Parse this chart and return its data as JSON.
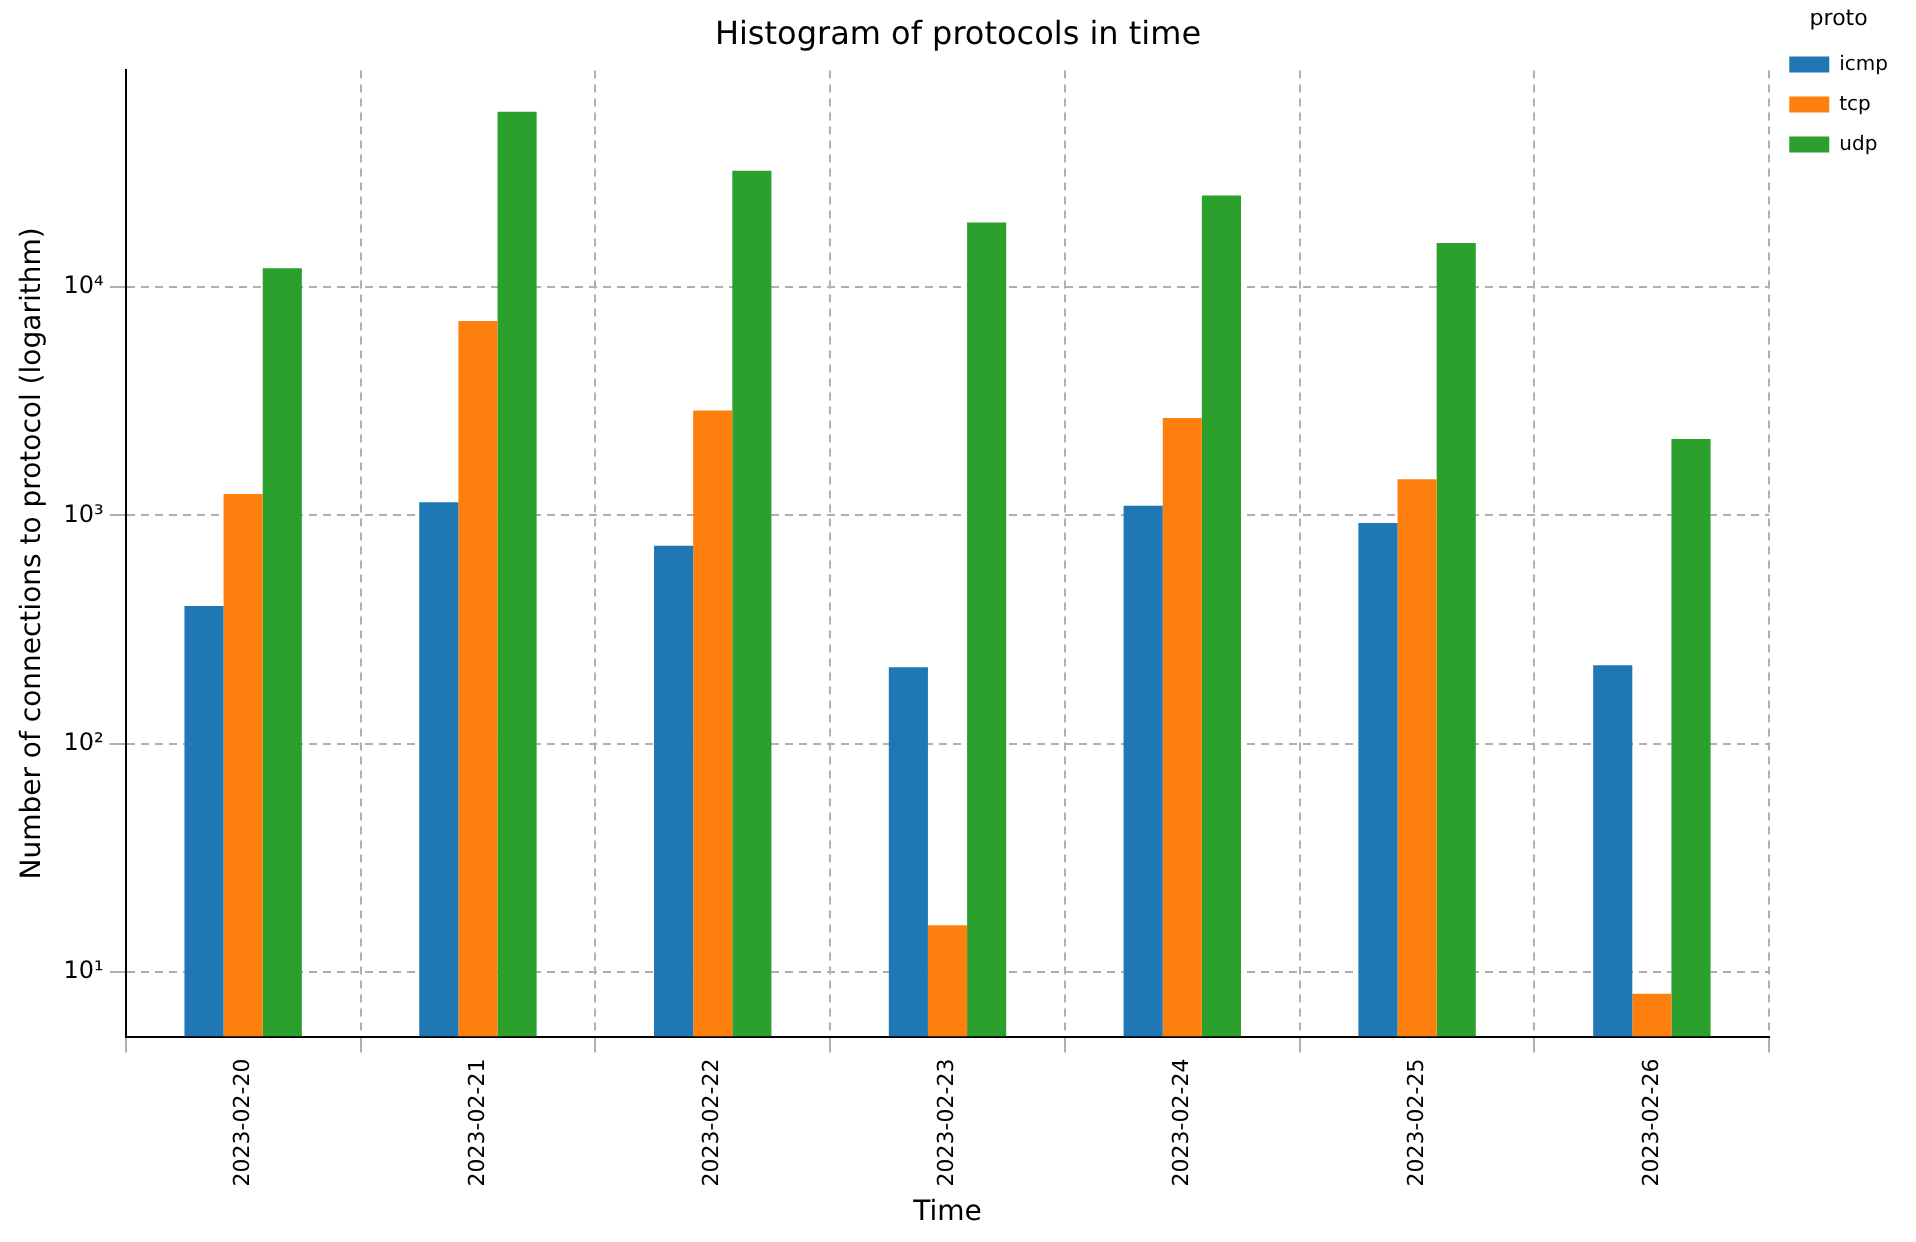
{
  "chart_data": {
    "type": "bar",
    "title": "Histogram of protocols in time",
    "xlabel": "Time",
    "ylabel": "Number of connections to protocol (logarithm)",
    "legend_title": "proto",
    "categories": [
      "2023-02-20",
      "2023-02-21",
      "2023-02-22",
      "2023-02-23",
      "2023-02-24",
      "2023-02-25",
      "2023-02-26"
    ],
    "series": [
      {
        "name": "icmp",
        "color": "#1f77b4",
        "values": [
          400,
          1140,
          735,
          216,
          1100,
          926,
          220
        ]
      },
      {
        "name": "tcp",
        "color": "#ff7f0e",
        "values": [
          1240,
          7100,
          2880,
          16,
          2670,
          1440,
          8
        ]
      },
      {
        "name": "udp",
        "color": "#2ca02c",
        "values": [
          12100,
          58700,
          32300,
          19200,
          25200,
          15600,
          2160
        ]
      }
    ],
    "log": "y",
    "ylim": [
      5.2,
      89000
    ],
    "yticks": [
      {
        "value": 10,
        "label": "10¹"
      },
      {
        "value": 100,
        "label": "10²"
      },
      {
        "value": 1000,
        "label": "10³"
      },
      {
        "value": 10000,
        "label": "10⁴"
      }
    ],
    "grid": true,
    "legend": "top right"
  }
}
